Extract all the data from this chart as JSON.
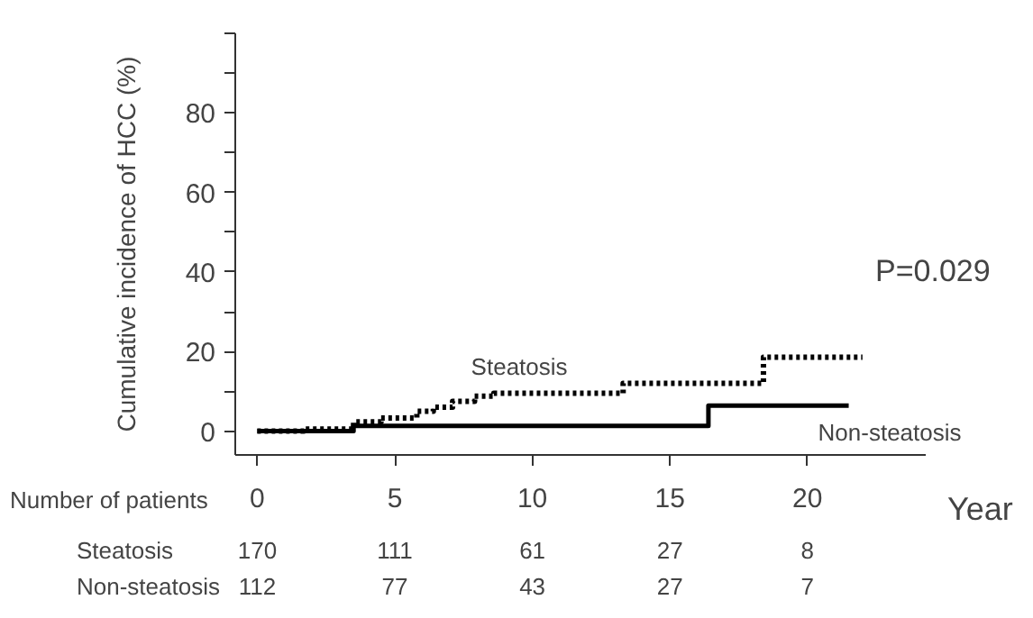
{
  "chart_data": {
    "type": "step",
    "ylabel": "Cumulative incidence of HCC (%)",
    "xlabel": "Year",
    "xlim": [
      -0.8,
      24.3
    ],
    "ylim": [
      -6,
      100
    ],
    "xticks": [
      0,
      5,
      10,
      15,
      20
    ],
    "yticks": [
      0,
      {
        "value": 10,
        "label": null
      },
      20,
      {
        "value": 30,
        "label": null
      },
      40,
      {
        "value": 50,
        "label": null
      },
      60,
      {
        "value": 70,
        "label": null
      },
      80,
      {
        "value": 90,
        "label": null
      },
      {
        "value": 100,
        "label": null
      }
    ],
    "grid": false,
    "legend": false,
    "marker": "none",
    "series": [
      {
        "name": "Steatosis",
        "color": "#000000",
        "line_style": "dotted",
        "x": [
          0,
          1.7,
          3.5,
          4.5,
          5.8,
          6.4,
          7.1,
          7.9,
          8.6,
          13.3,
          18.4,
          22
        ],
        "values": [
          0,
          0.5,
          2.3,
          3.3,
          5,
          6,
          7.5,
          8.8,
          9.5,
          12,
          18.6,
          18.6
        ]
      },
      {
        "name": "Non-steatosis",
        "color": "#000000",
        "line_style": "solid",
        "x": [
          0,
          3.5,
          16.4,
          21.5
        ],
        "values": [
          0,
          1.3,
          6.4,
          6.4
        ]
      }
    ],
    "annotations": [
      "P=0.029",
      "Number of patients",
      "Steatosis",
      "170",
      "111",
      "61",
      "27",
      "8",
      "Non-steatosis",
      "112",
      "77",
      "43",
      "27",
      "7"
    ]
  }
}
